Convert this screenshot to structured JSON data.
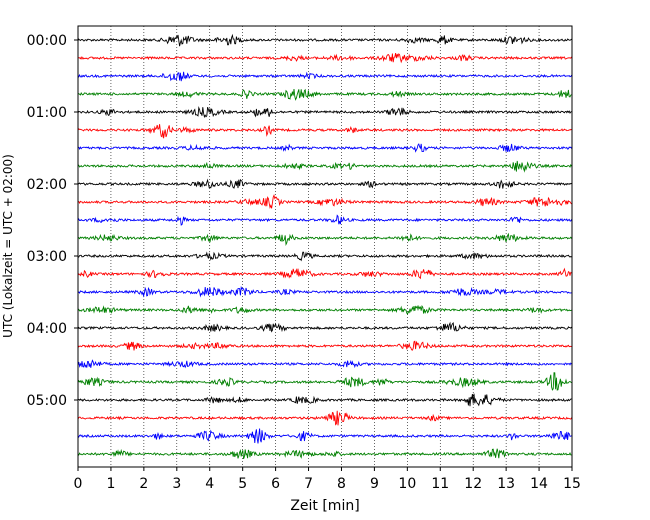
{
  "chart_data": {
    "type": "line",
    "title": "",
    "xlabel": "Zeit  [min]",
    "ylabel": "UTC (Lokalzeit = UTC + 02:00)",
    "xlim": [
      0,
      15
    ],
    "x_ticks": [
      "0",
      "1",
      "2",
      "3",
      "4",
      "5",
      "6",
      "7",
      "8",
      "9",
      "10",
      "11",
      "12",
      "13",
      "14",
      "15"
    ],
    "y_tick_labels": [
      "00:00",
      "01:00",
      "02:00",
      "03:00",
      "04:00",
      "05:00"
    ],
    "grid": "vertical dotted at each minute",
    "trace_interval_min": 15,
    "color_cycle": [
      "#000000",
      "#ff0000",
      "#0000ff",
      "#008000"
    ],
    "series": [
      {
        "start": "00:00",
        "color": "#000000"
      },
      {
        "start": "00:15",
        "color": "#ff0000"
      },
      {
        "start": "00:30",
        "color": "#0000ff"
      },
      {
        "start": "00:45",
        "color": "#008000"
      },
      {
        "start": "01:00",
        "color": "#000000"
      },
      {
        "start": "01:15",
        "color": "#ff0000"
      },
      {
        "start": "01:30",
        "color": "#0000ff"
      },
      {
        "start": "01:45",
        "color": "#008000"
      },
      {
        "start": "02:00",
        "color": "#000000"
      },
      {
        "start": "02:15",
        "color": "#ff0000"
      },
      {
        "start": "02:30",
        "color": "#0000ff"
      },
      {
        "start": "02:45",
        "color": "#008000"
      },
      {
        "start": "03:00",
        "color": "#000000"
      },
      {
        "start": "03:15",
        "color": "#ff0000"
      },
      {
        "start": "03:30",
        "color": "#0000ff"
      },
      {
        "start": "03:45",
        "color": "#008000"
      },
      {
        "start": "04:00",
        "color": "#000000"
      },
      {
        "start": "04:15",
        "color": "#ff0000"
      },
      {
        "start": "04:30",
        "color": "#0000ff"
      },
      {
        "start": "04:45",
        "color": "#008000"
      },
      {
        "start": "05:00",
        "color": "#000000"
      },
      {
        "start": "05:15",
        "color": "#ff0000"
      },
      {
        "start": "05:30",
        "color": "#0000ff"
      },
      {
        "start": "05:45",
        "color": "#008000"
      }
    ]
  }
}
